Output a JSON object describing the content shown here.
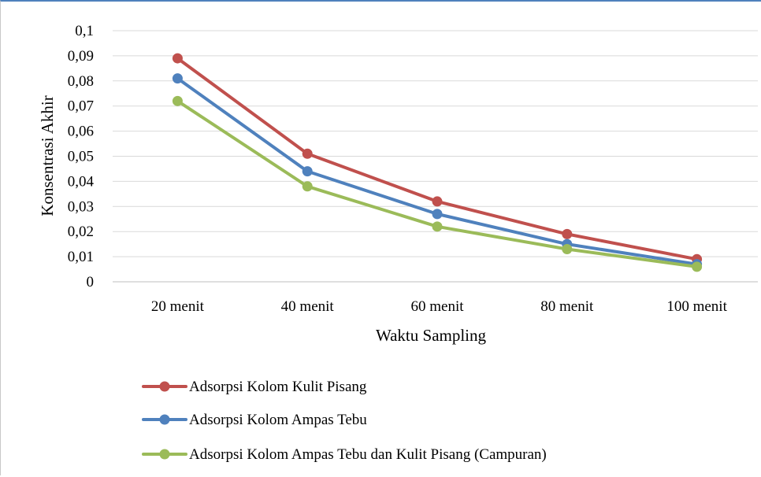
{
  "chart_data": {
    "type": "line",
    "categories": [
      "20 menit",
      "40 menit",
      "60 menit",
      "80 menit",
      "100 menit"
    ],
    "series": [
      {
        "name": "Adsorpsi Kolom Kulit Pisang",
        "color": "#c0504d",
        "values": [
          0.089,
          0.051,
          0.032,
          0.019,
          0.009
        ]
      },
      {
        "name": "Adsorpsi Kolom Ampas Tebu",
        "color": "#4f81bd",
        "values": [
          0.081,
          0.044,
          0.027,
          0.015,
          0.007
        ]
      },
      {
        "name": "Adsorpsi Kolom Ampas Tebu dan Kulit Pisang (Campuran)",
        "color": "#9bbb59",
        "values": [
          0.072,
          0.038,
          0.022,
          0.013,
          0.006
        ]
      }
    ],
    "xlabel": "Waktu Sampling",
    "ylabel": "Konsentrasi Akhir",
    "ylim": [
      0,
      0.1
    ],
    "yticks": [
      "0",
      "0,01",
      "0,02",
      "0,03",
      "0,04",
      "0,05",
      "0,06",
      "0,07",
      "0,08",
      "0,09",
      "0,1"
    ],
    "grid": true,
    "legend_position": "bottom"
  }
}
